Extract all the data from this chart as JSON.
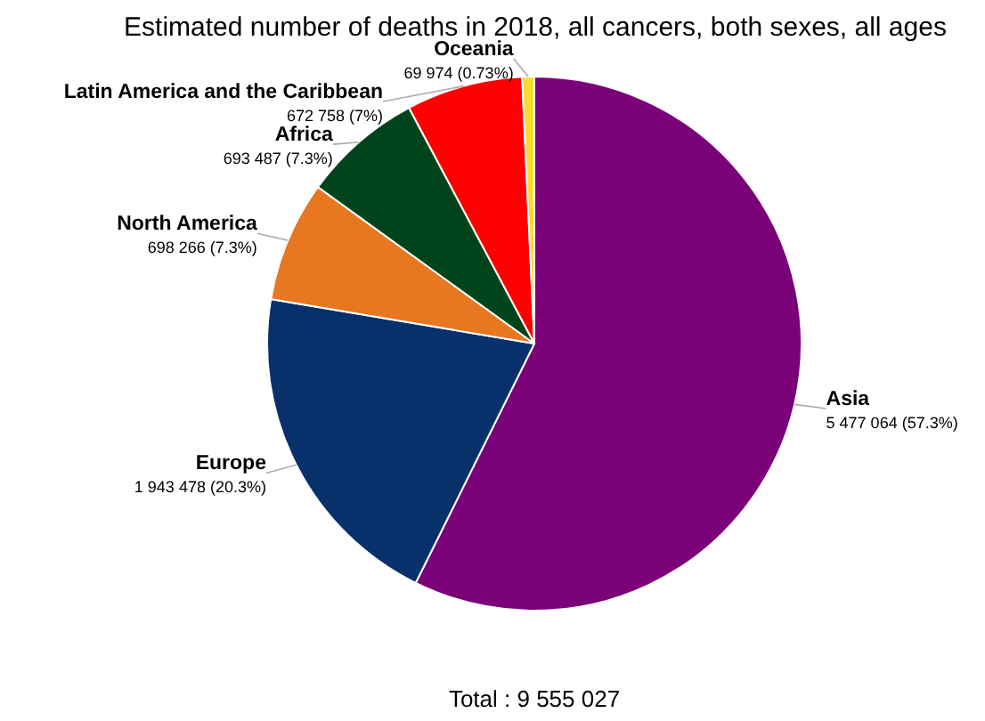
{
  "chart_data": {
    "type": "pie",
    "title": "Estimated number of deaths in 2018, all cancers, both sexes, all ages",
    "categories": [
      "Asia",
      "Europe",
      "North America",
      "Africa",
      "Latin America and the Caribbean",
      "Oceania"
    ],
    "values": [
      5477064,
      1943478,
      698266,
      693487,
      672758,
      69974
    ],
    "colors": [
      "#7a0177",
      "#08306b",
      "#e87722",
      "#00441b",
      "#ff0000",
      "#ffd92f"
    ],
    "value_labels": [
      "5 477 064 (57.3%)",
      "1 943 478 (20.3%)",
      "698 266 (7.3%)",
      "693 487 (7.3%)",
      "672 758 (7%)",
      "69 974 (0.73%)"
    ],
    "annotations": [
      "Total : 9 555 027"
    ]
  }
}
